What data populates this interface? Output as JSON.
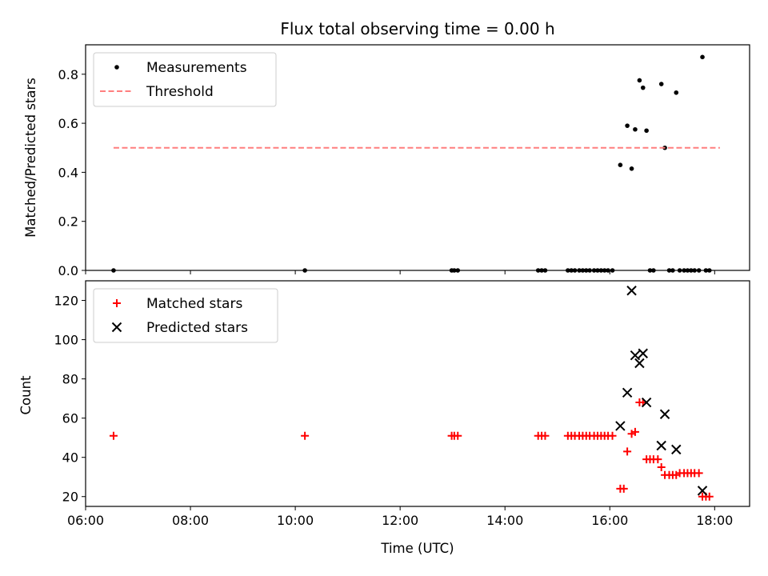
{
  "chart_data": [
    {
      "type": "scatter",
      "title": "Flux total observing time = 0.00 h",
      "xlabel": "",
      "ylabel": "Matched/Predicted stars",
      "xlim": [
        "06:00",
        "18:40"
      ],
      "ylim": [
        0.0,
        0.92
      ],
      "yticks": [
        "0.0",
        "0.2",
        "0.4",
        "0.6",
        "0.8"
      ],
      "legend_position": "top-left",
      "series": [
        {
          "name": "Measurements",
          "marker": "dot",
          "color": "#000000",
          "points": [
            [
              "06:32",
              0.0
            ],
            [
              "10:11",
              0.0
            ],
            [
              "12:59",
              0.0
            ],
            [
              "13:02",
              0.0
            ],
            [
              "13:06",
              0.0
            ],
            [
              "14:38",
              0.0
            ],
            [
              "14:42",
              0.0
            ],
            [
              "14:46",
              0.0
            ],
            [
              "15:12",
              0.0
            ],
            [
              "15:16",
              0.0
            ],
            [
              "15:20",
              0.0
            ],
            [
              "15:25",
              0.0
            ],
            [
              "15:29",
              0.0
            ],
            [
              "15:33",
              0.0
            ],
            [
              "15:37",
              0.0
            ],
            [
              "15:42",
              0.0
            ],
            [
              "15:46",
              0.0
            ],
            [
              "15:50",
              0.0
            ],
            [
              "15:54",
              0.0
            ],
            [
              "15:58",
              0.0
            ],
            [
              "16:03",
              0.0
            ],
            [
              "16:12",
              0.43
            ],
            [
              "16:20",
              0.59
            ],
            [
              "16:25",
              0.415
            ],
            [
              "16:29",
              0.575
            ],
            [
              "16:34",
              0.775
            ],
            [
              "16:38",
              0.745
            ],
            [
              "16:42",
              0.57
            ],
            [
              "16:46",
              0.0
            ],
            [
              "16:50",
              0.0
            ],
            [
              "16:59",
              0.76
            ],
            [
              "17:03",
              0.5
            ],
            [
              "17:08",
              0.0
            ],
            [
              "17:12",
              0.0
            ],
            [
              "17:16",
              0.725
            ],
            [
              "17:20",
              0.0
            ],
            [
              "17:25",
              0.0
            ],
            [
              "17:29",
              0.0
            ],
            [
              "17:33",
              0.0
            ],
            [
              "17:37",
              0.0
            ],
            [
              "17:42",
              0.0
            ],
            [
              "17:46",
              0.87
            ],
            [
              "17:50",
              0.0
            ],
            [
              "17:54",
              0.0
            ]
          ]
        },
        {
          "name": "Threshold",
          "line": "dashed",
          "color": "#ff7f7f",
          "points": [
            [
              "06:32",
              0.5
            ],
            [
              "18:06",
              0.5
            ]
          ]
        }
      ]
    },
    {
      "type": "scatter",
      "xlabel": "Time (UTC)",
      "ylabel": "Count",
      "xlim": [
        "06:00",
        "18:40"
      ],
      "ylim": [
        15,
        130
      ],
      "xticks": [
        "06:00",
        "08:00",
        "10:00",
        "12:00",
        "14:00",
        "16:00",
        "18:00"
      ],
      "yticks": [
        "20",
        "40",
        "60",
        "80",
        "100",
        "120"
      ],
      "legend_position": "top-left",
      "series": [
        {
          "name": "Matched stars",
          "marker": "plus",
          "color": "#ff0000",
          "points": [
            [
              "06:32",
              51
            ],
            [
              "10:11",
              51
            ],
            [
              "12:59",
              51
            ],
            [
              "13:02",
              51
            ],
            [
              "13:06",
              51
            ],
            [
              "14:38",
              51
            ],
            [
              "14:42",
              51
            ],
            [
              "14:46",
              51
            ],
            [
              "15:12",
              51
            ],
            [
              "15:16",
              51
            ],
            [
              "15:20",
              51
            ],
            [
              "15:25",
              51
            ],
            [
              "15:29",
              51
            ],
            [
              "15:33",
              51
            ],
            [
              "15:37",
              51
            ],
            [
              "15:42",
              51
            ],
            [
              "15:46",
              51
            ],
            [
              "15:50",
              51
            ],
            [
              "15:54",
              51
            ],
            [
              "15:58",
              51
            ],
            [
              "16:03",
              51
            ],
            [
              "16:12",
              24
            ],
            [
              "16:16",
              24
            ],
            [
              "16:20",
              43
            ],
            [
              "16:25",
              52
            ],
            [
              "16:29",
              53
            ],
            [
              "16:34",
              68
            ],
            [
              "16:38",
              68
            ],
            [
              "16:42",
              39
            ],
            [
              "16:46",
              39
            ],
            [
              "16:50",
              39
            ],
            [
              "16:55",
              39
            ],
            [
              "16:59",
              35
            ],
            [
              "17:03",
              31
            ],
            [
              "17:08",
              31
            ],
            [
              "17:12",
              31
            ],
            [
              "17:16",
              31
            ],
            [
              "17:20",
              32
            ],
            [
              "17:25",
              32
            ],
            [
              "17:29",
              32
            ],
            [
              "17:33",
              32
            ],
            [
              "17:37",
              32
            ],
            [
              "17:42",
              32
            ],
            [
              "17:46",
              20
            ],
            [
              "17:50",
              20
            ],
            [
              "17:54",
              20
            ]
          ]
        },
        {
          "name": "Predicted stars",
          "marker": "x",
          "color": "#000000",
          "points": [
            [
              "16:12",
              56
            ],
            [
              "16:20",
              73
            ],
            [
              "16:25",
              125
            ],
            [
              "16:29",
              92
            ],
            [
              "16:34",
              88
            ],
            [
              "16:38",
              93
            ],
            [
              "16:42",
              68
            ],
            [
              "16:59",
              46
            ],
            [
              "17:03",
              62
            ],
            [
              "17:16",
              44
            ],
            [
              "17:46",
              23
            ]
          ]
        }
      ]
    }
  ]
}
